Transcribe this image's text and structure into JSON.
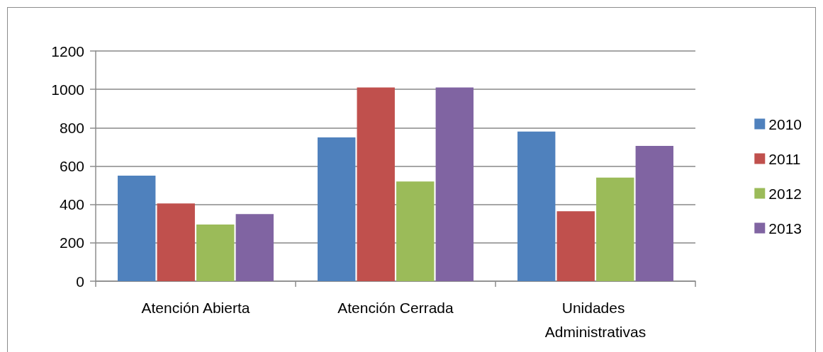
{
  "chart_data": {
    "type": "bar",
    "categories": [
      "Atención Abierta",
      "Atención Cerrada",
      "Unidades Administrativas"
    ],
    "series": [
      {
        "name": "2010",
        "color": "#4f81bd",
        "values": [
          550,
          750,
          780
        ]
      },
      {
        "name": "2011",
        "color": "#c0504d",
        "values": [
          405,
          1010,
          365
        ]
      },
      {
        "name": "2012",
        "color": "#9bbb59",
        "values": [
          295,
          520,
          540
        ]
      },
      {
        "name": "2013",
        "color": "#8064a2",
        "values": [
          350,
          1010,
          705
        ]
      }
    ],
    "ylim": [
      0,
      1200
    ],
    "yticks": [
      0,
      200,
      400,
      600,
      800,
      1000,
      1200
    ],
    "grid": "y",
    "legend": "right"
  }
}
